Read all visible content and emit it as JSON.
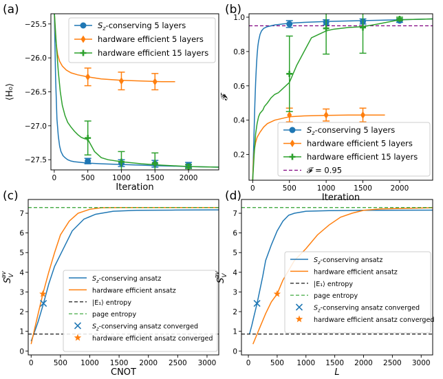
{
  "chart_data": [
    {
      "panel": "(a)",
      "type": "line",
      "xlabel": "Iteration",
      "ylabel": "⟨H₀⟩",
      "xlim": [
        -50,
        2450
      ],
      "ylim": [
        -27.65,
        -25.35
      ],
      "xticks": [
        0,
        500,
        1000,
        1500,
        2000
      ],
      "yticks": [
        -27.5,
        -27.0,
        -26.5,
        -26.0,
        -25.5
      ],
      "ytick_labels": [
        "−27.5",
        "−27.0",
        "−26.5",
        "−26.0",
        "−25.5"
      ],
      "grid": false,
      "legend_position": "top-right",
      "series": [
        {
          "name": "Sz-conserving 5 layers",
          "color": "#1f77b4",
          "marker": "circle",
          "x": [
            0,
            20,
            40,
            60,
            80,
            100,
            130,
            160,
            200,
            250,
            300,
            400,
            500,
            700,
            1000,
            1300,
            1600,
            2000,
            2450
          ],
          "y": [
            -25.3,
            -26.3,
            -26.9,
            -27.15,
            -27.3,
            -27.38,
            -27.44,
            -27.47,
            -27.5,
            -27.52,
            -27.53,
            -27.54,
            -27.55,
            -27.56,
            -27.57,
            -27.58,
            -27.59,
            -27.6,
            -27.61
          ],
          "markers": {
            "x": [
              500,
              1000,
              1500,
              2000
            ],
            "y": [
              -27.52,
              -27.55,
              -27.56,
              -27.58
            ],
            "err": [
              0.04,
              0.05,
              0.05,
              0.04
            ]
          }
        },
        {
          "name": "hardware efficient 5 layers",
          "color": "#ff7f0e",
          "marker": "diamond",
          "x": [
            0,
            15,
            30,
            50,
            80,
            120,
            180,
            250,
            350,
            500,
            700,
            1000,
            1300,
            1600,
            1800
          ],
          "y": [
            -25.3,
            -25.6,
            -25.8,
            -25.95,
            -26.05,
            -26.12,
            -26.18,
            -26.22,
            -26.25,
            -26.28,
            -26.31,
            -26.33,
            -26.34,
            -26.35,
            -26.35
          ],
          "markers": {
            "x": [
              500,
              1000,
              1500
            ],
            "y": [
              -26.28,
              -26.34,
              -26.35
            ],
            "err": [
              0.13,
              0.13,
              0.12
            ]
          }
        },
        {
          "name": "hardware efficient 15 layers",
          "color": "#2ca02c",
          "marker": "plus",
          "x": [
            0,
            30,
            60,
            90,
            120,
            160,
            200,
            250,
            300,
            350,
            400,
            450,
            500,
            600,
            700,
            800,
            1000,
            1300,
            1600,
            2000,
            2450
          ],
          "y": [
            -25.3,
            -25.8,
            -26.2,
            -26.5,
            -26.7,
            -26.85,
            -26.95,
            -27.02,
            -27.08,
            -27.13,
            -27.17,
            -27.19,
            -27.2,
            -27.38,
            -27.47,
            -27.5,
            -27.53,
            -27.56,
            -27.58,
            -27.6,
            -27.61
          ],
          "markers": {
            "x": [
              500,
              1000,
              1500,
              2000
            ],
            "y": [
              -27.18,
              -27.53,
              -27.55,
              -27.6
            ],
            "err": [
              0.25,
              0.15,
              0.15,
              0.03
            ]
          }
        }
      ]
    },
    {
      "panel": "(b)",
      "type": "line",
      "xlabel": "Iteration",
      "ylabel": "𝓕",
      "xlim": [
        -50,
        2450
      ],
      "ylim": [
        0.05,
        1.02
      ],
      "xticks": [
        0,
        500,
        1000,
        1500,
        2000
      ],
      "yticks": [
        0.2,
        0.4,
        0.6,
        0.8,
        1.0
      ],
      "ytick_labels": [
        "0.2",
        "0.4",
        "0.6",
        "0.8",
        "1.0"
      ],
      "grid": false,
      "legend_position": "bottom-right",
      "hline": {
        "y": 0.95,
        "name": "𝓕 = 0.95",
        "color": "#800080",
        "style": "dashed"
      },
      "series": [
        {
          "name": "Sz-conserving 5 layers",
          "color": "#1f77b4",
          "marker": "circle",
          "x": [
            0,
            10,
            20,
            30,
            40,
            50,
            60,
            70,
            80,
            90,
            100,
            120,
            150,
            200,
            250,
            300,
            400,
            500,
            700,
            1000,
            1500,
            2000,
            2450
          ],
          "y": [
            0.05,
            0.2,
            0.35,
            0.5,
            0.62,
            0.71,
            0.78,
            0.83,
            0.86,
            0.88,
            0.9,
            0.92,
            0.935,
            0.945,
            0.95,
            0.955,
            0.96,
            0.965,
            0.97,
            0.975,
            0.98,
            0.985,
            0.99
          ],
          "markers": {
            "x": [
              500,
              1000,
              1500,
              2000
            ],
            "y": [
              0.96,
              0.97,
              0.975,
              0.98
            ],
            "err": [
              0.02,
              0.015,
              0.015,
              0.01
            ]
          }
        },
        {
          "name": "hardware efficient 5 layers",
          "color": "#ff7f0e",
          "marker": "diamond",
          "x": [
            0,
            10,
            20,
            40,
            60,
            100,
            150,
            200,
            300,
            400,
            500,
            700,
            1000,
            1300,
            1600,
            1800
          ],
          "y": [
            0.05,
            0.16,
            0.22,
            0.27,
            0.3,
            0.33,
            0.36,
            0.38,
            0.4,
            0.41,
            0.42,
            0.425,
            0.428,
            0.43,
            0.43,
            0.43
          ],
          "markers": {
            "x": [
              500,
              1000,
              1500
            ],
            "y": [
              0.43,
              0.43,
              0.43
            ],
            "err": [
              0.04,
              0.035,
              0.04
            ]
          }
        },
        {
          "name": "hardware efficient 15 layers",
          "color": "#2ca02c",
          "marker": "plus",
          "x": [
            0,
            20,
            40,
            60,
            80,
            100,
            120,
            140,
            160,
            200,
            250,
            300,
            350,
            400,
            450,
            500,
            550,
            600,
            650,
            700,
            750,
            800,
            900,
            1000,
            1100,
            1300,
            1500,
            1700,
            2000,
            2450
          ],
          "y": [
            0.05,
            0.2,
            0.32,
            0.38,
            0.42,
            0.44,
            0.45,
            0.46,
            0.48,
            0.5,
            0.53,
            0.55,
            0.56,
            0.58,
            0.6,
            0.62,
            0.67,
            0.72,
            0.76,
            0.8,
            0.84,
            0.88,
            0.9,
            0.92,
            0.93,
            0.94,
            0.945,
            0.96,
            0.985,
            0.99
          ],
          "markers": {
            "x": [
              500,
              1000,
              1500,
              2000
            ],
            "y": [
              0.67,
              0.935,
              0.94,
              0.99
            ],
            "err": [
              0.22,
              0.15,
              0.15,
              0.01
            ]
          }
        }
      ]
    },
    {
      "panel": "(c)",
      "type": "line",
      "xlabel": "CNOT",
      "ylabel": "S_V^av",
      "xlim": [
        -50,
        3200
      ],
      "ylim": [
        -0.2,
        7.7
      ],
      "xticks": [
        0,
        500,
        1000,
        1500,
        2000,
        2500,
        3000
      ],
      "yticks": [
        0,
        1,
        2,
        3,
        4,
        5,
        6,
        7
      ],
      "ytick_labels": [
        "0",
        "1",
        "2",
        "3",
        "4",
        "5",
        "6",
        "7"
      ],
      "grid": false,
      "legend_position": "lower-right",
      "series": [
        {
          "name": "Sz-conserving ansatz",
          "color": "#1f77b4",
          "style": "solid",
          "x": [
            0,
            50,
            120,
            200,
            300,
            400,
            500,
            700,
            900,
            1100,
            1400,
            1800,
            2400,
            3200
          ],
          "y": [
            0.5,
            0.9,
            1.5,
            2.3,
            3.4,
            4.3,
            4.9,
            6.1,
            6.7,
            6.95,
            7.1,
            7.15,
            7.16,
            7.17
          ]
        },
        {
          "name": "hardware efficient ansatz",
          "color": "#ff7f0e",
          "style": "solid",
          "x": [
            0,
            50,
            120,
            200,
            300,
            400,
            500,
            650,
            800,
            1000,
            1200,
            1500,
            2000,
            3200
          ],
          "y": [
            0.35,
            1.0,
            1.9,
            2.9,
            4.0,
            5.0,
            5.9,
            6.6,
            7.0,
            7.2,
            7.28,
            7.29,
            7.29,
            7.29
          ]
        },
        {
          "name": "|E₁⟩ entropy",
          "color": "#000000",
          "style": "dashed",
          "y_const": 0.86
        },
        {
          "name": "page entropy",
          "color": "#2ca02c",
          "style": "dashed",
          "y_const": 7.29
        }
      ],
      "points": [
        {
          "name": "Sz-conserving ansatz converged",
          "color": "#1f77b4",
          "marker": "x",
          "x": 210,
          "y": 2.42
        },
        {
          "name": "hardware efficient ansatz converged",
          "color": "#ff7f0e",
          "marker": "star",
          "x": 200,
          "y": 2.9
        }
      ]
    },
    {
      "panel": "(d)",
      "type": "line",
      "xlabel": "L",
      "ylabel": "S_V^av",
      "xlim": [
        -120,
        3200
      ],
      "ylim": [
        -0.2,
        7.7
      ],
      "xticks": [
        0,
        500,
        1000,
        1500,
        2000,
        2500,
        3000
      ],
      "yticks": [
        0,
        1,
        2,
        3,
        4,
        5,
        6,
        7
      ],
      "ytick_labels": [
        "0",
        "1",
        "2",
        "3",
        "4",
        "5",
        "6",
        "7"
      ],
      "grid": false,
      "legend_position": "right",
      "series": [
        {
          "name": "Sz-conserving ansatz",
          "color": "#1f77b4",
          "style": "solid",
          "x": [
            20,
            60,
            100,
            150,
            200,
            250,
            300,
            400,
            500,
            600,
            700,
            800,
            1000,
            1400,
            2000,
            3200
          ],
          "y": [
            0.86,
            1.3,
            1.8,
            2.4,
            3.1,
            3.8,
            4.6,
            5.4,
            6.1,
            6.6,
            6.9,
            7.0,
            7.1,
            7.13,
            7.15,
            7.16
          ]
        },
        {
          "name": "hardware efficient ansatz",
          "color": "#ff7f0e",
          "style": "solid",
          "x": [
            80,
            200,
            300,
            400,
            500,
            600,
            800,
            1000,
            1200,
            1400,
            1600,
            1800,
            2000,
            2300,
            3200
          ],
          "y": [
            0.35,
            1.2,
            1.9,
            2.5,
            2.9,
            3.6,
            4.6,
            5.2,
            5.9,
            6.4,
            6.8,
            7.0,
            7.15,
            7.22,
            7.28
          ]
        },
        {
          "name": "|E₁⟩ entropy",
          "color": "#000000",
          "style": "dashed",
          "y_const": 0.86
        },
        {
          "name": "page entropy",
          "color": "#2ca02c",
          "style": "dashed",
          "y_const": 7.29
        }
      ],
      "points": [
        {
          "name": "Sz-conserving ansatz converged",
          "color": "#1f77b4",
          "marker": "x",
          "x": 150,
          "y": 2.42
        },
        {
          "name": "hardware efficient ansatz converged",
          "color": "#ff7f0e",
          "marker": "star",
          "x": 500,
          "y": 2.9
        }
      ]
    }
  ]
}
